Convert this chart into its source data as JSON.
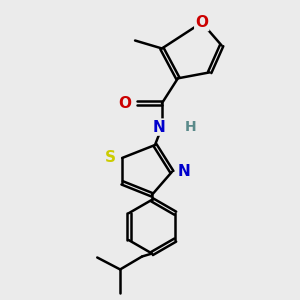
{
  "background_color": "#ebebeb",
  "atom_colors": {
    "C": "#000000",
    "N": "#0000cc",
    "O": "#cc0000",
    "S": "#cccc00",
    "H": "#5a8a8a"
  },
  "bond_color": "#000000",
  "bond_width": 1.8,
  "dbo": 0.018,
  "font_size": 10,
  "figsize": [
    3.0,
    3.0
  ],
  "dpi": 100
}
